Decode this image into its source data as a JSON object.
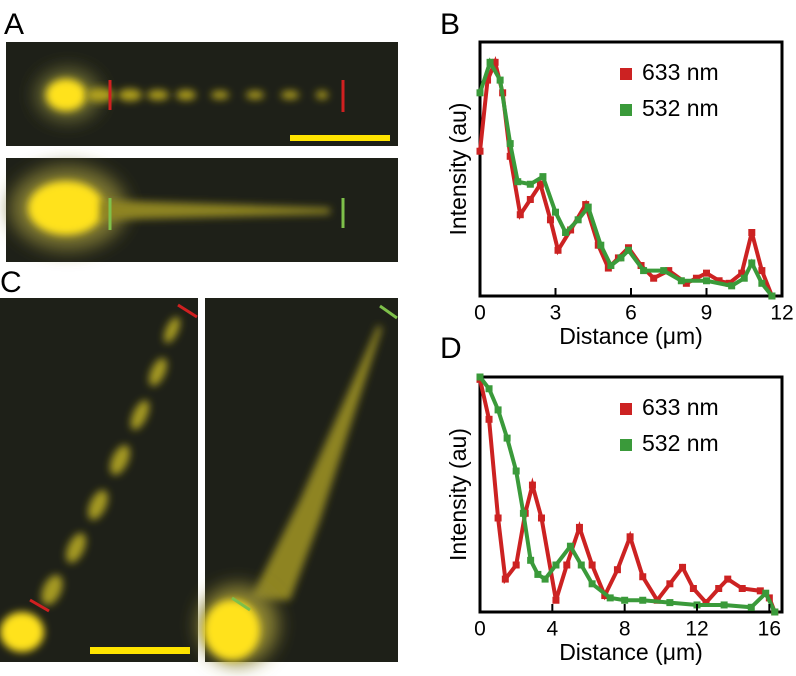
{
  "panels": [
    "A",
    "B",
    "C",
    "D"
  ],
  "chart_data": [
    {
      "type": "line",
      "x_label": "Distance (μm)",
      "y_label": "Intensity (au)",
      "xlim": [
        0,
        12
      ],
      "xticks": [
        0,
        3,
        6,
        9,
        12
      ],
      "ylim": [
        0,
        1
      ],
      "legend": "upper right",
      "series": [
        {
          "name": "633 nm",
          "color": "#cc2222",
          "x": [
            0,
            0.3,
            0.6,
            0.9,
            1.2,
            1.6,
            2.0,
            2.4,
            2.8,
            3.1,
            3.6,
            4.2,
            4.7,
            5.1,
            5.5,
            5.9,
            6.4,
            6.9,
            7.5,
            8.2,
            8.6,
            9.0,
            9.5,
            9.9,
            10.4,
            10.8,
            11.2,
            11.6
          ],
          "values": [
            0.57,
            0.85,
            0.92,
            0.8,
            0.55,
            0.32,
            0.38,
            0.44,
            0.3,
            0.18,
            0.26,
            0.36,
            0.2,
            0.11,
            0.15,
            0.19,
            0.12,
            0.07,
            0.1,
            0.05,
            0.07,
            0.09,
            0.06,
            0.05,
            0.09,
            0.25,
            0.1,
            0
          ]
        },
        {
          "name": "532 nm",
          "color": "#3a9a3a",
          "x": [
            0,
            0.4,
            0.8,
            1.2,
            1.5,
            2.0,
            2.5,
            3.0,
            3.4,
            3.9,
            4.3,
            4.8,
            5.2,
            5.6,
            5.9,
            6.5,
            7.3,
            8.0,
            9.0,
            10.0,
            10.5,
            10.8,
            11.2,
            11.6
          ],
          "values": [
            0.8,
            0.92,
            0.85,
            0.6,
            0.45,
            0.44,
            0.47,
            0.33,
            0.25,
            0.3,
            0.35,
            0.2,
            0.12,
            0.15,
            0.18,
            0.1,
            0.1,
            0.06,
            0.06,
            0.04,
            0.07,
            0.13,
            0.05,
            0
          ]
        }
      ]
    },
    {
      "type": "line",
      "x_label": "Distance (μm)",
      "y_label": "Intensity (au)",
      "xlim": [
        0,
        16.7
      ],
      "xticks": [
        0,
        4,
        8,
        12,
        16
      ],
      "ylim": [
        0,
        1
      ],
      "legend": "upper right",
      "series": [
        {
          "name": "633 nm",
          "color": "#cc2222",
          "x": [
            0,
            0.5,
            1.0,
            1.4,
            2.0,
            2.5,
            2.9,
            3.4,
            4.2,
            4.8,
            5.5,
            6.2,
            6.9,
            7.6,
            8.3,
            9.0,
            9.8,
            10.5,
            11.2,
            11.8,
            12.5,
            13.2,
            13.7,
            14.5,
            15.5,
            16.0,
            16.3
          ],
          "values": [
            0.99,
            0.82,
            0.4,
            0.14,
            0.2,
            0.42,
            0.54,
            0.4,
            0.05,
            0.2,
            0.36,
            0.2,
            0.07,
            0.18,
            0.32,
            0.15,
            0.05,
            0.12,
            0.19,
            0.1,
            0.04,
            0.1,
            0.14,
            0.1,
            0.09,
            0.06,
            0
          ]
        },
        {
          "name": "532 nm",
          "color": "#3a9a3a",
          "x": [
            0,
            0.5,
            1.0,
            1.5,
            2.0,
            2.4,
            2.8,
            3.2,
            3.6,
            4.2,
            5.0,
            5.6,
            6.2,
            7.2,
            8.0,
            9.0,
            10.5,
            12.0,
            13.5,
            15.0,
            15.8,
            16.3
          ],
          "values": [
            1.0,
            0.95,
            0.86,
            0.74,
            0.6,
            0.42,
            0.22,
            0.16,
            0.14,
            0.2,
            0.28,
            0.2,
            0.12,
            0.06,
            0.05,
            0.05,
            0.04,
            0.03,
            0.03,
            0.02,
            0.08,
            0
          ]
        }
      ]
    }
  ]
}
